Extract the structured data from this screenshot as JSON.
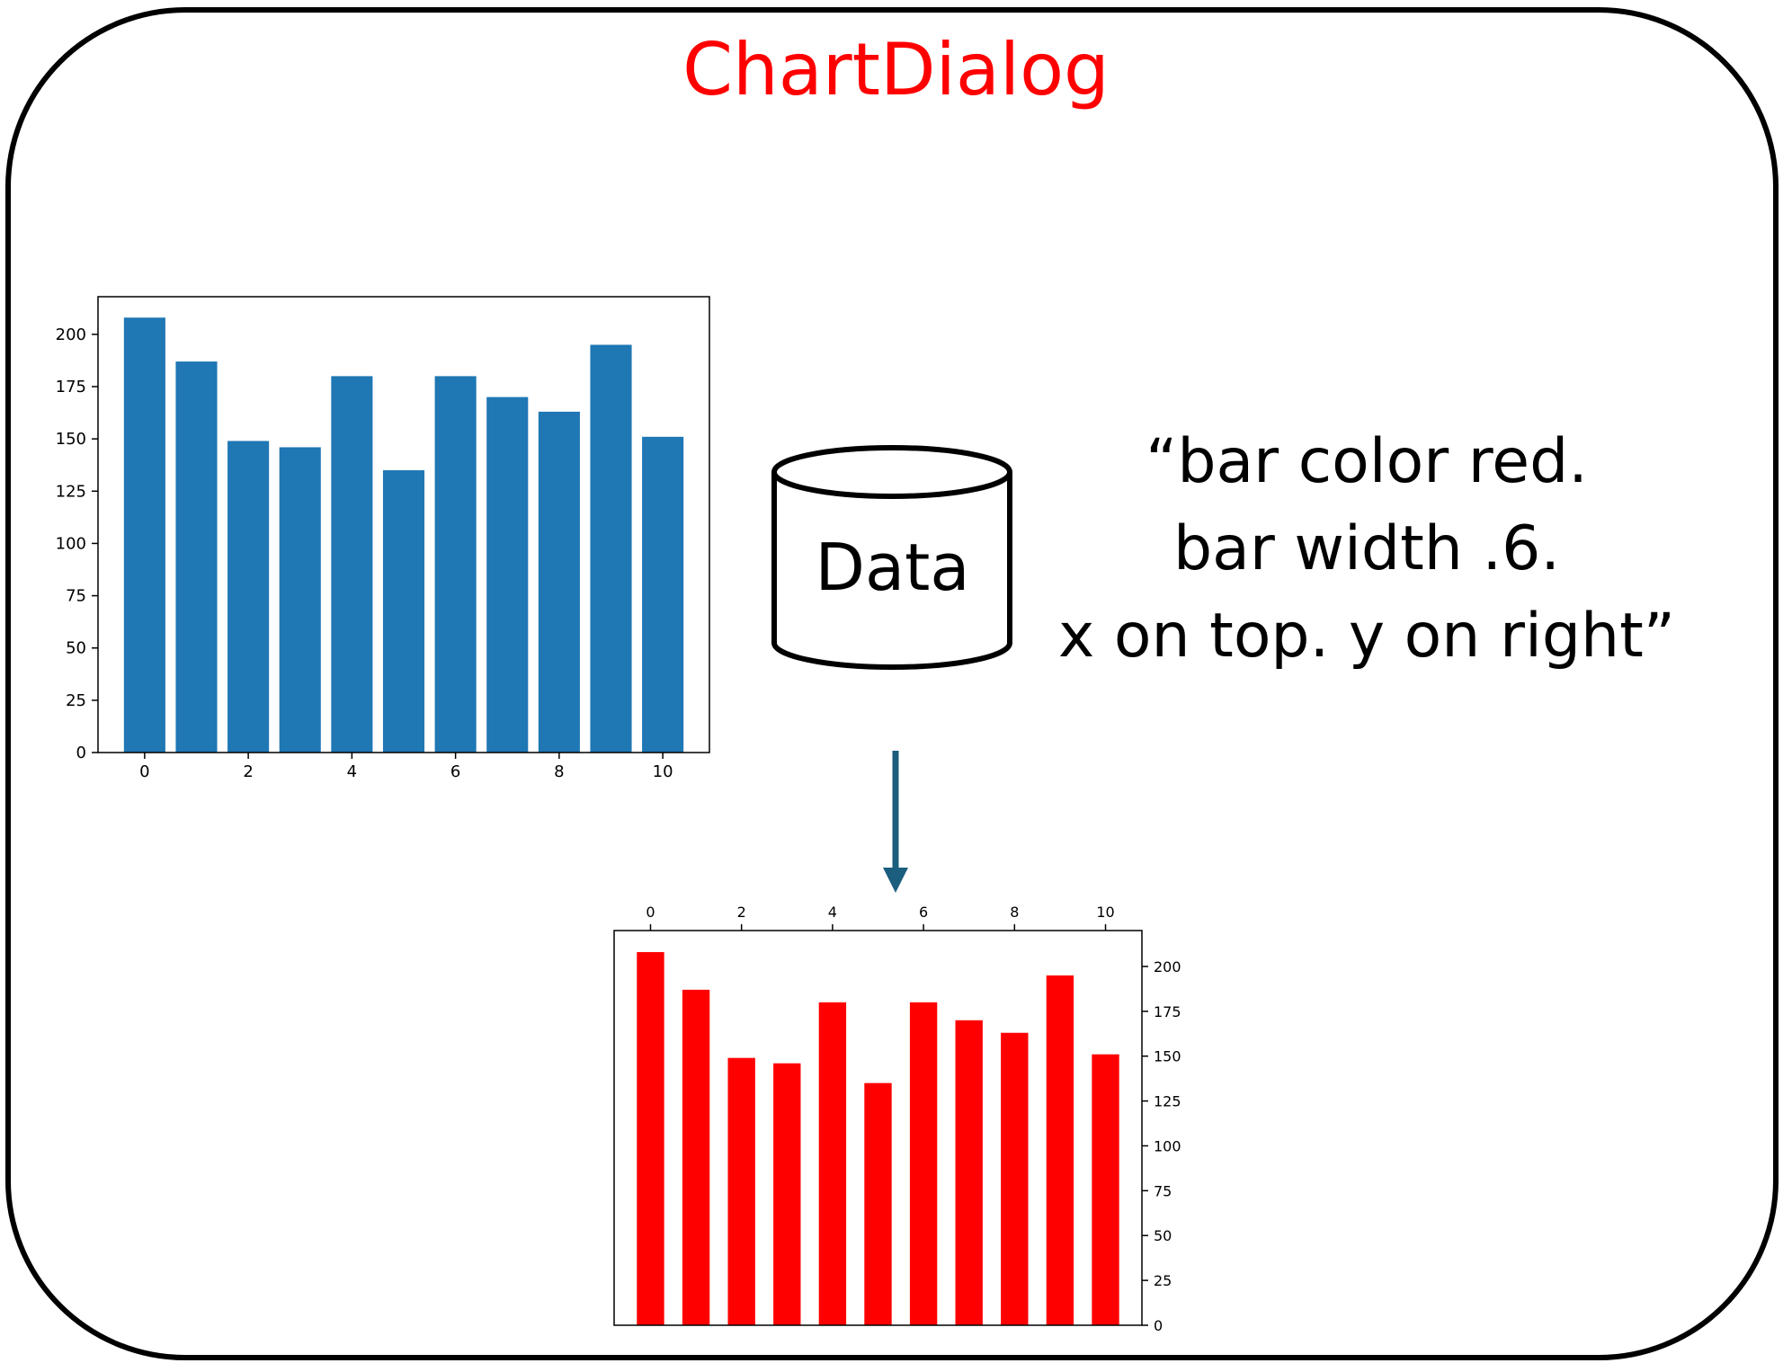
{
  "title": "ChartDialog",
  "database": {
    "label": "Data",
    "icon": "database-cylinder-icon"
  },
  "instruction": {
    "lines": [
      "“bar color red.",
      "bar width .6.",
      "x on top. y on right”"
    ]
  },
  "arrow": {
    "icon": "arrow-down-icon",
    "color": "#1b5e7e"
  },
  "chart_data": [
    {
      "type": "bar",
      "role": "input-chart",
      "x": [
        0,
        1,
        2,
        3,
        4,
        5,
        6,
        7,
        8,
        9,
        10
      ],
      "values": [
        208,
        187,
        149,
        146,
        180,
        135,
        180,
        170,
        163,
        195,
        151
      ],
      "bar_color": "#1f77b4",
      "bar_width": 0.8,
      "x_ticks": [
        0,
        2,
        4,
        6,
        8,
        10
      ],
      "y_ticks": [
        0,
        25,
        50,
        75,
        100,
        125,
        150,
        175,
        200
      ],
      "ylim": [
        0,
        218
      ],
      "xlim": [
        -0.9,
        10.9
      ],
      "xaxis_position": "bottom",
      "yaxis_position": "left"
    },
    {
      "type": "bar",
      "role": "output-chart",
      "x": [
        0,
        1,
        2,
        3,
        4,
        5,
        6,
        7,
        8,
        9,
        10
      ],
      "values": [
        208,
        187,
        149,
        146,
        180,
        135,
        180,
        170,
        163,
        195,
        151
      ],
      "bar_color": "#ff0000",
      "bar_width": 0.6,
      "x_ticks": [
        0,
        2,
        4,
        6,
        8,
        10
      ],
      "y_ticks": [
        0,
        25,
        50,
        75,
        100,
        125,
        150,
        175,
        200
      ],
      "ylim": [
        0,
        220
      ],
      "xlim": [
        -0.8,
        10.8
      ],
      "xaxis_position": "top",
      "yaxis_position": "right"
    }
  ]
}
